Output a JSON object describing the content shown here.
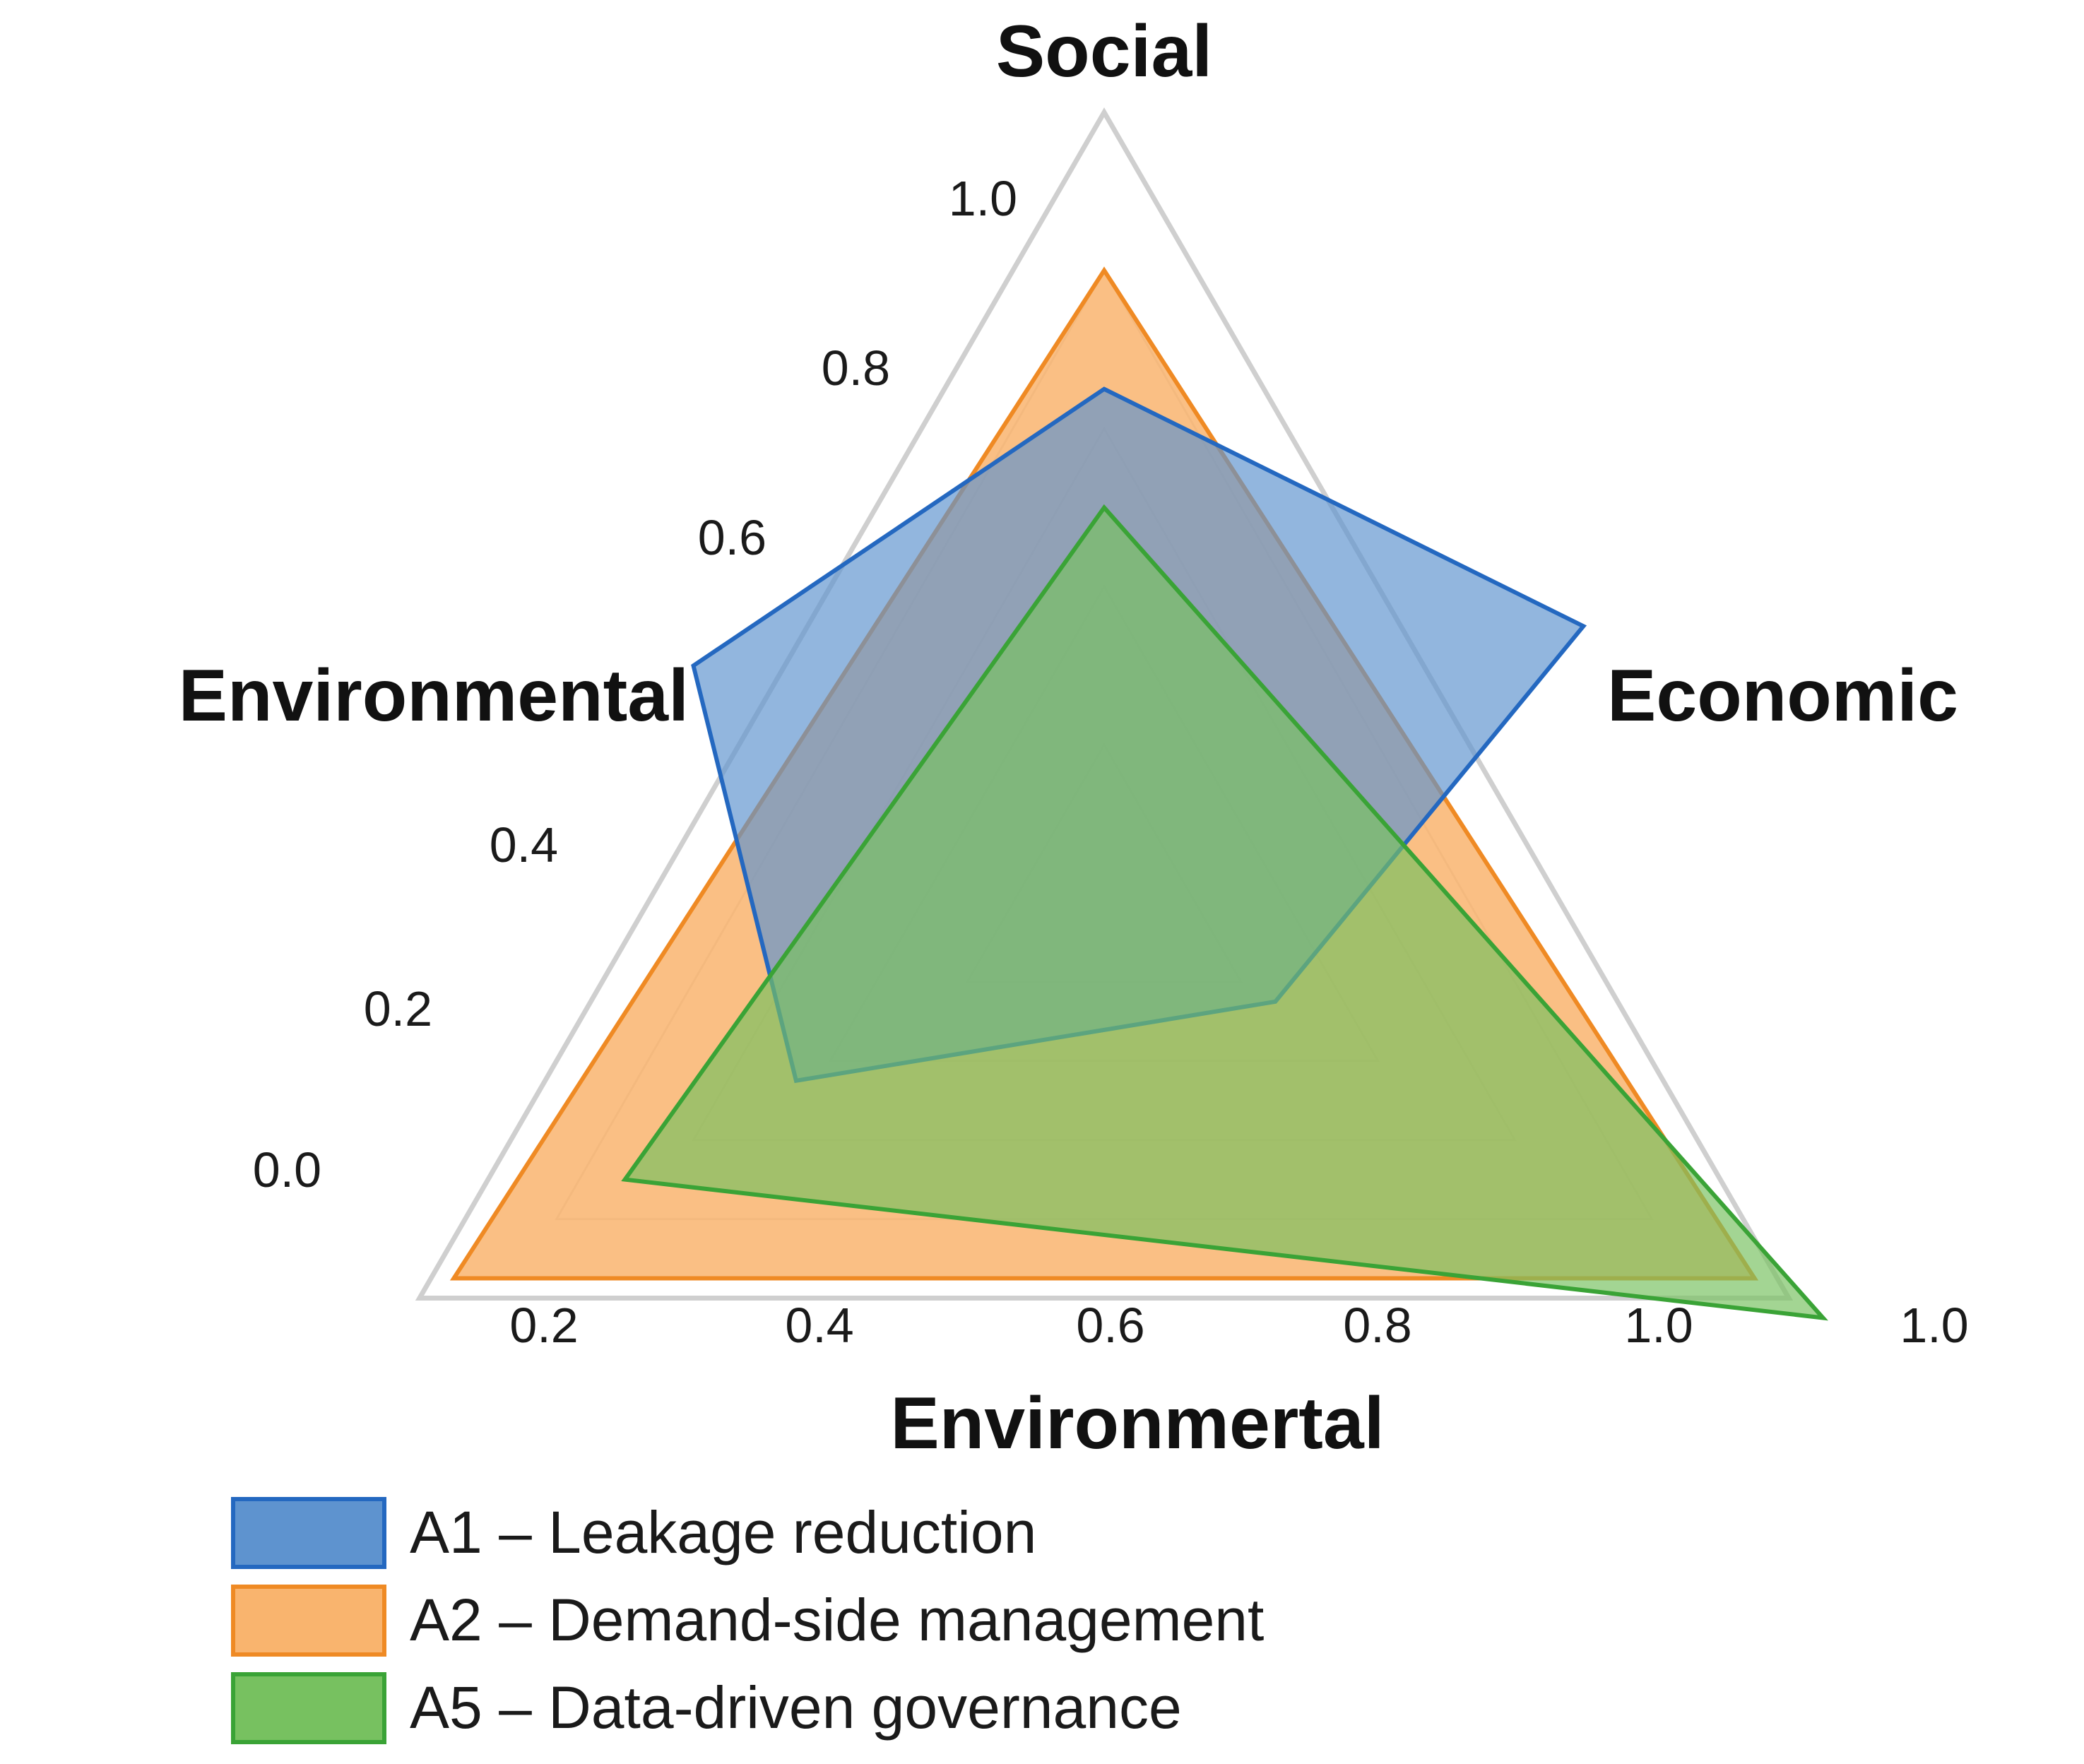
{
  "chart_data": {
    "type": "radar",
    "axes": [
      "Social",
      "Economic",
      "Environmental"
    ],
    "axis_titles": {
      "top": "Social",
      "left": "Environmental",
      "right": "Economic",
      "bottom": "Environmertal"
    },
    "left_ticks": [
      "1.0",
      "0.8",
      "0.6",
      "0.4",
      "0.2",
      "0.0"
    ],
    "bottom_ticks": [
      "0.2",
      "0.4",
      "0.6",
      "0.8",
      "1.0",
      "1.0"
    ],
    "rlim": [
      0,
      1
    ],
    "grid_levels": [
      0.2,
      0.4,
      0.6,
      0.8,
      1.0
    ],
    "series": [
      {
        "name": "A2 – Demand-side management",
        "color": "#ef8a24",
        "fill": "#f9b46e",
        "points": [
          {
            "axis": "Social",
            "value": 0.8
          },
          {
            "axis": "Economic",
            "value": 0.95
          },
          {
            "axis": "Environmental",
            "value": 0.95
          }
        ]
      },
      {
        "name": "A1 – Leakage reduction",
        "color": "#2468c0",
        "fill": "#5e93cf",
        "points": [
          {
            "axis": "Social",
            "value": 0.65
          },
          {
            "axis": "Economic-Social",
            "value": 0.7
          },
          {
            "axis": "Economic",
            "value": 0.25
          },
          {
            "axis": "Environmental",
            "value": 0.45
          },
          {
            "axis": "Social-Environmental",
            "value": 0.6
          }
        ]
      },
      {
        "name": "A5 – Data-driven governance",
        "color": "#3aa336",
        "fill": "#77c160",
        "points": [
          {
            "axis": "Social",
            "value": 0.5
          },
          {
            "axis": "Economic",
            "value": 1.05
          },
          {
            "axis": "Environmental",
            "value": 0.7
          }
        ]
      }
    ],
    "legend": [
      {
        "label": "A1 – Leakage reduction",
        "fill": "#5e93cf",
        "stroke": "#2468c0"
      },
      {
        "label": "A2 – Demand-side management",
        "fill": "#f9b46e",
        "stroke": "#ef8a24"
      },
      {
        "label": "A5 – Data-driven governance",
        "fill": "#77c160",
        "stroke": "#3aa336"
      }
    ]
  }
}
